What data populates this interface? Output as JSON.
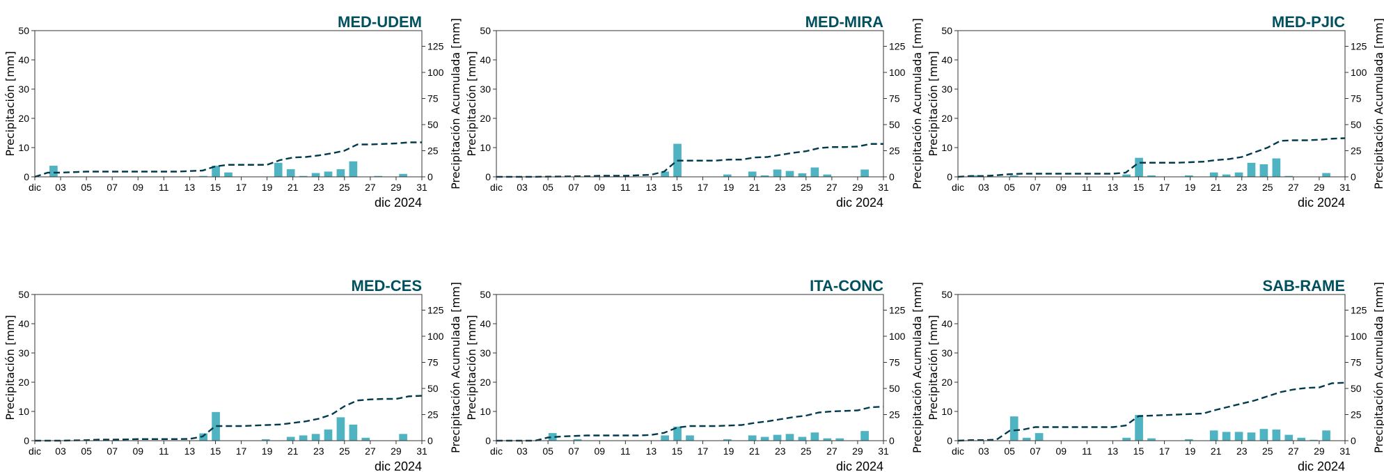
{
  "figure": {
    "colors": {
      "bar": "#4fb3c2",
      "line": "#003a4c",
      "title": "#005060"
    },
    "left_axis": {
      "label": "Precipitación [mm]",
      "ylim": [
        0,
        50
      ],
      "ticks": [
        0,
        10,
        20,
        30,
        40,
        50
      ]
    },
    "right_axis": {
      "label": "Precipitación Acumulada [mm]",
      "ylim": [
        0,
        140
      ],
      "ticks": [
        0,
        25,
        50,
        75,
        100,
        125
      ]
    },
    "x_axis": {
      "xlim": [
        1,
        31
      ],
      "ticks": [
        1,
        3,
        5,
        7,
        9,
        11,
        13,
        15,
        17,
        19,
        21,
        23,
        25,
        27,
        29,
        31
      ],
      "tick_labels": [
        "dic",
        "03",
        "05",
        "07",
        "09",
        "11",
        "13",
        "15",
        "17",
        "19",
        "21",
        "23",
        "25",
        "27",
        "29",
        "31"
      ],
      "date_label": "dic 2024"
    }
  },
  "chart_data": [
    {
      "type": "bar",
      "title": "MED-UDEM",
      "xlabel": "",
      "ylabel": "Precipitación [mm]",
      "ylabel_right": "Precipitación Acumulada [mm]",
      "ylim": [
        0,
        50
      ],
      "ylim_right": [
        0,
        140
      ],
      "x": [
        1,
        2,
        3,
        4,
        5,
        6,
        7,
        8,
        9,
        10,
        11,
        12,
        13,
        14,
        15,
        16,
        17,
        18,
        19,
        20,
        21,
        22,
        23,
        24,
        25,
        26,
        27,
        28,
        29,
        30,
        31
      ],
      "series": [
        {
          "kind": "bar",
          "axis": "left",
          "values": [
            0,
            3.8,
            0,
            0,
            0,
            0,
            0,
            0,
            0,
            0,
            0,
            0,
            0,
            0.3,
            3.8,
            1.5,
            0,
            0,
            0,
            4.8,
            2.6,
            0.3,
            1.3,
            1.8,
            2.6,
            5.3,
            0,
            0.3,
            0,
            1.0,
            0
          ]
        },
        {
          "kind": "line",
          "axis": "right",
          "values": [
            0,
            4,
            4,
            4.5,
            5,
            5,
            5,
            5,
            5,
            5,
            5,
            5,
            5.5,
            6,
            10,
            11.5,
            11.5,
            11.5,
            11.5,
            16,
            18.5,
            19,
            20.5,
            22.5,
            25,
            31,
            31,
            31.5,
            32,
            33,
            33
          ]
        }
      ]
    },
    {
      "type": "bar",
      "title": "MED-MIRA",
      "xlabel": "",
      "ylabel": "Precipitación [mm]",
      "ylabel_right": "Precipitación Acumulada [mm]",
      "ylim": [
        0,
        50
      ],
      "ylim_right": [
        0,
        140
      ],
      "x": [
        1,
        2,
        3,
        4,
        5,
        6,
        7,
        8,
        9,
        10,
        11,
        12,
        13,
        14,
        15,
        16,
        17,
        18,
        19,
        20,
        21,
        22,
        23,
        24,
        25,
        26,
        27,
        28,
        29,
        30,
        31
      ],
      "series": [
        {
          "kind": "bar",
          "axis": "left",
          "values": [
            0,
            0,
            0,
            0,
            0,
            0,
            0,
            0,
            0,
            0,
            0,
            0,
            0,
            1.8,
            11.3,
            0,
            0,
            0,
            0.8,
            0,
            1.8,
            0.5,
            2.5,
            2.0,
            1.2,
            3.2,
            0.8,
            0,
            0,
            2.5,
            0
          ]
        },
        {
          "kind": "line",
          "axis": "right",
          "values": [
            0,
            0,
            0,
            0,
            0.2,
            0.3,
            0.5,
            0.5,
            1,
            1,
            1,
            1.5,
            2,
            5,
            15.5,
            15.5,
            15.5,
            15.5,
            16.5,
            16.5,
            18.5,
            19,
            21,
            23,
            24.5,
            27.5,
            28.5,
            28.5,
            29,
            31.5,
            31.5
          ]
        }
      ]
    },
    {
      "type": "bar",
      "title": "MED-PJIC",
      "xlabel": "",
      "ylabel": "Precipitación [mm]",
      "ylabel_right": "Precipitación Acumulada [mm]",
      "ylim": [
        0,
        50
      ],
      "ylim_right": [
        0,
        140
      ],
      "x": [
        1,
        2,
        3,
        4,
        5,
        6,
        7,
        8,
        9,
        10,
        11,
        12,
        13,
        14,
        15,
        16,
        17,
        18,
        19,
        20,
        21,
        22,
        23,
        24,
        25,
        26,
        27,
        28,
        29,
        30,
        31
      ],
      "series": [
        {
          "kind": "bar",
          "axis": "left",
          "values": [
            0,
            0.5,
            0,
            0,
            0.5,
            0,
            0,
            0,
            0,
            0,
            0,
            0,
            0,
            0.8,
            6.5,
            0.5,
            0,
            0,
            0.5,
            0,
            1.5,
            0.8,
            1.5,
            4.8,
            4.3,
            6.3,
            0.3,
            0,
            0,
            1.3,
            0
          ]
        },
        {
          "kind": "line",
          "axis": "right",
          "values": [
            0,
            0.8,
            0.8,
            1.5,
            2.5,
            3,
            3,
            3,
            3,
            3,
            3,
            3,
            3,
            4,
            13.5,
            13.5,
            13.5,
            13.5,
            14,
            14.5,
            16,
            17,
            19,
            23.5,
            28,
            34.5,
            35,
            35,
            35.5,
            36.5,
            37
          ]
        }
      ]
    },
    {
      "type": "bar",
      "title": "MED-CES",
      "xlabel": "",
      "ylabel": "Precipitación [mm]",
      "ylabel_right": "Precipitación Acumulada [mm]",
      "ylim": [
        0,
        50
      ],
      "ylim_right": [
        0,
        140
      ],
      "x": [
        1,
        2,
        3,
        4,
        5,
        6,
        7,
        8,
        9,
        10,
        11,
        12,
        13,
        14,
        15,
        16,
        17,
        18,
        19,
        20,
        21,
        22,
        23,
        24,
        25,
        26,
        27,
        28,
        29,
        30,
        31
      ],
      "series": [
        {
          "kind": "bar",
          "axis": "left",
          "values": [
            0,
            0,
            0,
            0,
            0,
            0,
            0,
            0,
            0,
            0,
            0,
            0,
            0,
            2.5,
            9.8,
            0,
            0,
            0,
            0.5,
            0,
            1.3,
            1.8,
            2.3,
            3.8,
            8.0,
            5.5,
            1.0,
            0,
            0,
            2.3,
            0
          ]
        },
        {
          "kind": "line",
          "axis": "right",
          "values": [
            0,
            0,
            0,
            0.3,
            0.5,
            1,
            1,
            1.2,
            1.5,
            1.5,
            1.5,
            1.5,
            1.7,
            4,
            14,
            14,
            14,
            14.5,
            15,
            15.5,
            17,
            18.5,
            21,
            25,
            33,
            38.5,
            39.5,
            40,
            40,
            42.5,
            43
          ]
        }
      ]
    },
    {
      "type": "bar",
      "title": "ITA-CONC",
      "xlabel": "",
      "ylabel": "Precipitación [mm]",
      "ylabel_right": "Precipitación Acumulada [mm]",
      "ylim": [
        0,
        50
      ],
      "ylim_right": [
        0,
        140
      ],
      "x": [
        1,
        2,
        3,
        4,
        5,
        6,
        7,
        8,
        9,
        10,
        11,
        12,
        13,
        14,
        15,
        16,
        17,
        18,
        19,
        20,
        21,
        22,
        23,
        24,
        25,
        26,
        27,
        28,
        29,
        30,
        31
      ],
      "series": [
        {
          "kind": "bar",
          "axis": "left",
          "values": [
            0,
            0,
            0,
            0,
            2.6,
            0,
            0.5,
            0,
            0,
            0,
            0,
            0,
            0,
            1.8,
            4.8,
            1.8,
            0,
            0,
            0.5,
            0,
            1.8,
            1.3,
            2.0,
            2.3,
            1.3,
            2.8,
            0.8,
            0.8,
            0,
            3.3,
            0
          ]
        },
        {
          "kind": "line",
          "axis": "right",
          "values": [
            0,
            0,
            0,
            0,
            3,
            4,
            4.5,
            5,
            5,
            5,
            5,
            5,
            5.5,
            7.5,
            12.5,
            14,
            14,
            14,
            14.5,
            15,
            17,
            18.5,
            20.5,
            22.5,
            24,
            27,
            28,
            28.5,
            29,
            32,
            32.5
          ]
        }
      ]
    },
    {
      "type": "bar",
      "title": "SAB-RAME",
      "xlabel": "",
      "ylabel": "Precipitación [mm]",
      "ylabel_right": "Precipitación Acumulada [mm]",
      "ylim": [
        0,
        50
      ],
      "ylim_right": [
        0,
        140
      ],
      "x": [
        1,
        2,
        3,
        4,
        5,
        6,
        7,
        8,
        9,
        10,
        11,
        12,
        13,
        14,
        15,
        16,
        17,
        18,
        19,
        20,
        21,
        22,
        23,
        24,
        25,
        26,
        27,
        28,
        29,
        30,
        31
      ],
      "series": [
        {
          "kind": "bar",
          "axis": "left",
          "values": [
            0,
            0,
            0,
            0,
            8.3,
            1.0,
            2.6,
            0,
            0,
            0,
            0,
            0,
            0,
            1.0,
            8.8,
            0.8,
            0,
            0,
            0.5,
            0,
            3.5,
            3.0,
            3.0,
            2.8,
            4.0,
            3.8,
            2.0,
            1.0,
            0.3,
            3.5,
            0
          ]
        },
        {
          "kind": "line",
          "axis": "right",
          "values": [
            0,
            0.5,
            0.5,
            1,
            9.5,
            10.5,
            13,
            13,
            13,
            13,
            13,
            13,
            13,
            14.5,
            23.5,
            24,
            24.5,
            25,
            25.5,
            26,
            29.5,
            32.5,
            35.5,
            38.5,
            42.5,
            46.5,
            49,
            50.5,
            51,
            55,
            55.5
          ]
        }
      ]
    }
  ]
}
